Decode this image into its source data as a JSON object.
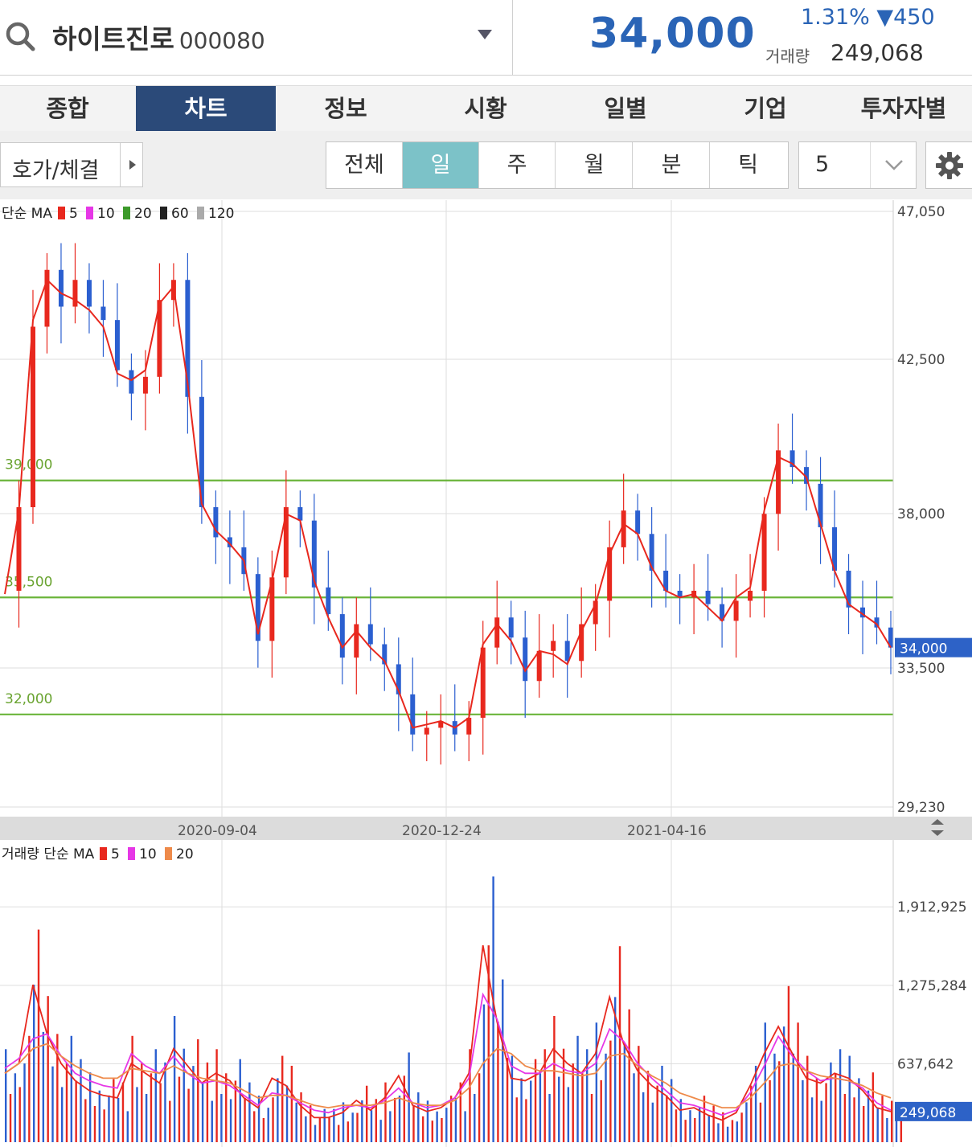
{
  "header": {
    "stock_name": "하이트진로",
    "stock_code": "000080",
    "price": "34,000",
    "change": "1.31% ▼450",
    "volume_label": "거래량",
    "volume_value": "249,068",
    "change_color": "#2a64b6"
  },
  "tabs": [
    {
      "label": "종합",
      "active": false
    },
    {
      "label": "차트",
      "active": true
    },
    {
      "label": "정보",
      "active": false
    },
    {
      "label": "시황",
      "active": false
    },
    {
      "label": "일별",
      "active": false
    },
    {
      "label": "기업",
      "active": false
    },
    {
      "label": "투자자별",
      "active": false
    }
  ],
  "toolbar": {
    "hoga_label": "호가/체결",
    "periods": [
      {
        "label": "전체",
        "active": false
      },
      {
        "label": "일",
        "active": true
      },
      {
        "label": "주",
        "active": false
      },
      {
        "label": "월",
        "active": false
      },
      {
        "label": "분",
        "active": false
      },
      {
        "label": "틱",
        "active": false
      }
    ],
    "count_value": "5",
    "icons": [
      "search-icon",
      "chevron-down-icon",
      "gear-icon"
    ]
  },
  "chart_data": [
    {
      "type": "candlestick",
      "legend_title": "단순 MA",
      "legend": [
        {
          "name": "5",
          "color": "#e8281e"
        },
        {
          "name": "10",
          "color": "#e637e6"
        },
        {
          "name": "20",
          "color": "#3c9a2a"
        },
        {
          "name": "60",
          "color": "#222222"
        },
        {
          "name": "120",
          "color": "#aaaaaa"
        }
      ],
      "y_ticks": [
        "47,050",
        "42,500",
        "38,000",
        "33,500",
        "29,230"
      ],
      "ylim": [
        29230,
        47050
      ],
      "x_ticks": [
        "2020-09-04",
        "2020-12-24",
        "2021-04-16"
      ],
      "current_price_label": "34,000",
      "horizontal_lines": [
        {
          "label": "39,000",
          "value": 39000,
          "color": "#6ab43a"
        },
        {
          "label": "35,500",
          "value": 35500,
          "color": "#6ab43a"
        },
        {
          "label": "32,000",
          "value": 32000,
          "color": "#6ab43a"
        }
      ],
      "series": [
        {
          "name": "price",
          "values": [
            35700,
            38200,
            43600,
            45300,
            44200,
            45000,
            44200,
            43800,
            42300,
            41600,
            42100,
            44400,
            45000,
            41500,
            38200,
            37300,
            37000,
            36200,
            34200,
            36100,
            38200,
            37800,
            35800,
            35000,
            33700,
            34700,
            34100,
            33500,
            32600,
            31400,
            31600,
            31800,
            31400,
            31900,
            34000,
            34900,
            34300,
            33000,
            33900,
            34200,
            33600,
            34700,
            35400,
            37000,
            38100,
            37400,
            36300,
            35700,
            35500,
            35700,
            35300,
            34800,
            35400,
            35700,
            38000,
            39900,
            39400,
            38900,
            37600,
            36300,
            35200,
            34900,
            34600,
            34000
          ]
        },
        {
          "name": "MA5",
          "values": [
            35600,
            38100,
            43800,
            45000,
            44600,
            44400,
            44100,
            43600,
            42200,
            42000,
            42300,
            44300,
            44800,
            41900,
            38300,
            37500,
            37100,
            36600,
            34400,
            36000,
            38000,
            37800,
            36000,
            34900,
            34000,
            34500,
            34000,
            33600,
            32700,
            31600,
            31700,
            31800,
            31600,
            31900,
            34100,
            34700,
            34200,
            33300,
            33900,
            33800,
            33500,
            34500,
            35300,
            36800,
            37700,
            37400,
            36400,
            35700,
            35500,
            35600,
            35200,
            34800,
            35500,
            35800,
            38100,
            39700,
            39500,
            39100,
            37700,
            36300,
            35300,
            35000,
            34700,
            34000
          ]
        }
      ]
    },
    {
      "type": "bar",
      "legend_title": "거래량 단순 MA",
      "legend": [
        {
          "name": "5",
          "color": "#e8281e"
        },
        {
          "name": "10",
          "color": "#e637e6"
        },
        {
          "name": "20",
          "color": "#ee8a4a"
        }
      ],
      "y_ticks": [
        "1,912,925",
        "1,275,284",
        "637,642"
      ],
      "current_volume_label": "249,068",
      "series": [
        {
          "name": "MA5",
          "values": [
            560000,
            640000,
            1280000,
            880000,
            640000,
            500000,
            420000,
            380000,
            360000,
            640000,
            560000,
            480000,
            760000,
            620000,
            480000,
            560000,
            500000,
            360000,
            280000,
            520000,
            460000,
            300000,
            200000,
            200000,
            240000,
            340000,
            260000,
            360000,
            540000,
            300000,
            250000,
            280000,
            360000,
            560000,
            1600000,
            980000,
            520000,
            500000,
            560000,
            760000,
            640000,
            560000,
            720000,
            1180000,
            800000,
            580000,
            460000,
            380000,
            260000,
            280000,
            220000,
            180000,
            240000,
            460000,
            720000,
            940000,
            720000,
            520000,
            480000,
            560000,
            520000,
            420000,
            280000,
            249068
          ]
        },
        {
          "name": "MA10",
          "values": [
            600000,
            680000,
            840000,
            880000,
            700000,
            560000,
            500000,
            460000,
            440000,
            720000,
            620000,
            560000,
            700000,
            560000,
            480000,
            500000,
            460000,
            380000,
            300000,
            400000,
            380000,
            320000,
            260000,
            240000,
            280000,
            300000,
            280000,
            340000,
            440000,
            320000,
            280000,
            300000,
            360000,
            520000,
            1200000,
            1000000,
            620000,
            560000,
            560000,
            640000,
            580000,
            560000,
            640000,
            920000,
            820000,
            640000,
            520000,
            420000,
            320000,
            300000,
            260000,
            220000,
            260000,
            400000,
            620000,
            860000,
            700000,
            580000,
            500000,
            520000,
            500000,
            440000,
            320000,
            260000
          ]
        },
        {
          "name": "MA20",
          "values": [
            560000,
            640000,
            760000,
            800000,
            700000,
            620000,
            560000,
            520000,
            520000,
            600000,
            580000,
            560000,
            620000,
            560000,
            520000,
            500000,
            480000,
            420000,
            360000,
            380000,
            380000,
            340000,
            300000,
            280000,
            300000,
            300000,
            300000,
            320000,
            360000,
            320000,
            300000,
            300000,
            340000,
            440000,
            640000,
            760000,
            720000,
            620000,
            580000,
            580000,
            560000,
            540000,
            560000,
            700000,
            720000,
            620000,
            540000,
            480000,
            400000,
            360000,
            320000,
            280000,
            280000,
            360000,
            480000,
            620000,
            640000,
            580000,
            540000,
            520000,
            500000,
            460000,
            400000,
            360000
          ]
        }
      ]
    }
  ]
}
